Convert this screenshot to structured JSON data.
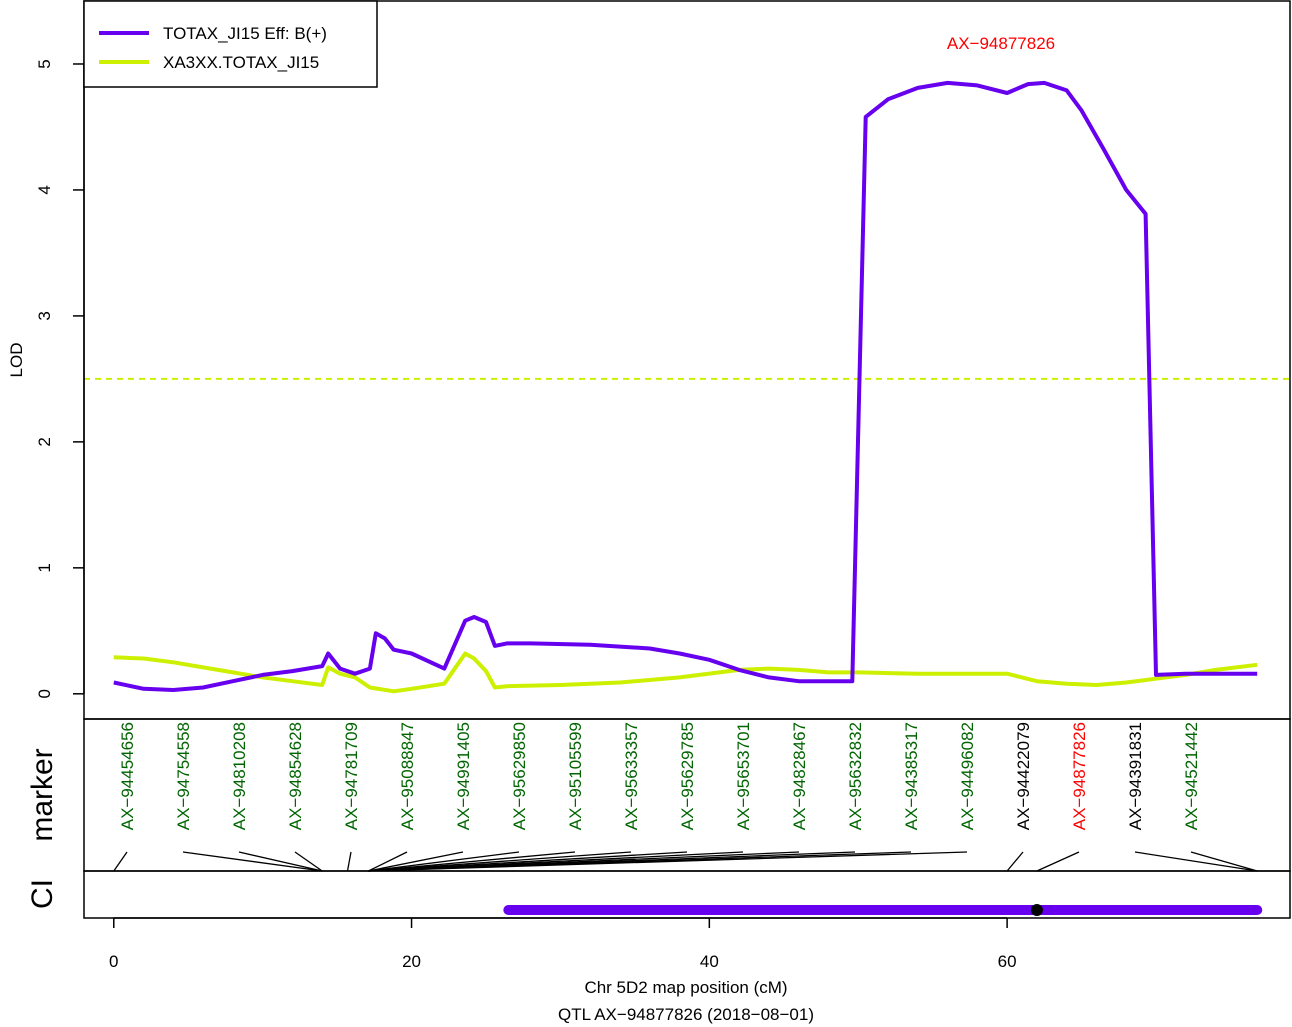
{
  "chart_data": {
    "type": "line",
    "xlabel": "Chr 5D2 map position (cM)",
    "subtitle": "QTL AX−94877826 (2018−08−01)",
    "ylabel": "LOD",
    "xlim": [
      -2,
      79
    ],
    "ylim": [
      -0.2,
      5.5
    ],
    "x_ticks": [
      "0",
      "20",
      "40",
      "60"
    ],
    "y_ticks": [
      "0",
      "1",
      "2",
      "3",
      "4",
      "5"
    ],
    "threshold": 2.5,
    "peak_label": "AX−94877826",
    "series": [
      {
        "name": "TOTAX_JI15 Eff: B(+)",
        "color": "#6600ee",
        "x": [
          0,
          2,
          4,
          6,
          8,
          10,
          12,
          14,
          14.4,
          15.2,
          16.2,
          17.2,
          17.6,
          18.2,
          18.8,
          20,
          22.2,
          23.6,
          24.2,
          25,
          25.6,
          26.4,
          28,
          32,
          36,
          38,
          40,
          42,
          44,
          46,
          48,
          49.6,
          50.5,
          52,
          54,
          56,
          58,
          60,
          61.4,
          62.5,
          63,
          64,
          65,
          66.5,
          68,
          69.3,
          70,
          72,
          74,
          76.8
        ],
        "y": [
          0.09,
          0.04,
          0.03,
          0.05,
          0.1,
          0.15,
          0.18,
          0.22,
          0.32,
          0.2,
          0.16,
          0.2,
          0.48,
          0.44,
          0.35,
          0.32,
          0.2,
          0.58,
          0.61,
          0.57,
          0.38,
          0.4,
          0.4,
          0.39,
          0.36,
          0.32,
          0.27,
          0.19,
          0.13,
          0.1,
          0.1,
          0.1,
          4.58,
          4.72,
          4.81,
          4.85,
          4.83,
          4.77,
          4.84,
          4.85,
          4.83,
          4.79,
          4.63,
          4.32,
          4.0,
          3.81,
          0.15,
          0.16,
          0.16,
          0.16
        ]
      },
      {
        "name": "XA3XX.TOTAX_JI15",
        "color": "#ccf000",
        "x": [
          0,
          2,
          4,
          6,
          8,
          10,
          12,
          14,
          14.4,
          15.2,
          16.2,
          17.2,
          18.8,
          20,
          22.2,
          23.6,
          24.2,
          25,
          25.6,
          26.4,
          30,
          34,
          38,
          42,
          44,
          46,
          48,
          50,
          54,
          58,
          60,
          62,
          64,
          66,
          68,
          70,
          72,
          74,
          76.8
        ],
        "y": [
          0.29,
          0.28,
          0.25,
          0.21,
          0.17,
          0.13,
          0.1,
          0.07,
          0.21,
          0.16,
          0.13,
          0.05,
          0.02,
          0.04,
          0.08,
          0.32,
          0.28,
          0.18,
          0.05,
          0.06,
          0.07,
          0.09,
          0.13,
          0.19,
          0.2,
          0.19,
          0.17,
          0.17,
          0.16,
          0.16,
          0.16,
          0.1,
          0.08,
          0.07,
          0.09,
          0.12,
          0.15,
          0.19,
          0.23
        ]
      }
    ],
    "markers": [
      {
        "name": "AX−94454656",
        "pos": 0.0,
        "color": "#006400"
      },
      {
        "name": "AX−94754558",
        "pos": 14.0,
        "color": "#006400"
      },
      {
        "name": "AX−94810208",
        "pos": 14.0,
        "color": "#006400"
      },
      {
        "name": "AX−94854628",
        "pos": 14.0,
        "color": "#006400"
      },
      {
        "name": "AX−94781709",
        "pos": 15.7,
        "color": "#006400"
      },
      {
        "name": "AX−95088847",
        "pos": 17.1,
        "color": "#006400"
      },
      {
        "name": "AX−94991405",
        "pos": 17.1,
        "color": "#006400"
      },
      {
        "name": "AX−95629850",
        "pos": 17.1,
        "color": "#006400"
      },
      {
        "name": "AX−95105599",
        "pos": 17.1,
        "color": "#006400"
      },
      {
        "name": "AX−95633357",
        "pos": 17.1,
        "color": "#006400"
      },
      {
        "name": "AX−95629785",
        "pos": 17.1,
        "color": "#006400"
      },
      {
        "name": "AX−95653701",
        "pos": 17.1,
        "color": "#006400"
      },
      {
        "name": "AX−94828467",
        "pos": 17.1,
        "color": "#006400"
      },
      {
        "name": "AX−95632832",
        "pos": 17.1,
        "color": "#006400"
      },
      {
        "name": "AX−94385317",
        "pos": 17.1,
        "color": "#006400"
      },
      {
        "name": "AX−94496082",
        "pos": 17.1,
        "color": "#006400"
      },
      {
        "name": "AX−94422079",
        "pos": 60.0,
        "color": "#000000"
      },
      {
        "name": "AX−94877826",
        "pos": 62.0,
        "color": "#ff0000"
      },
      {
        "name": "AX−94391831",
        "pos": 76.8,
        "color": "#000000"
      },
      {
        "name": "AX−94521442",
        "pos": 76.8,
        "color": "#006400"
      }
    ],
    "ci": {
      "from": 26.5,
      "to": 76.8,
      "peak": 62.0,
      "color": "#6600ee"
    },
    "panel_labels": [
      "marker",
      "CI"
    ]
  }
}
